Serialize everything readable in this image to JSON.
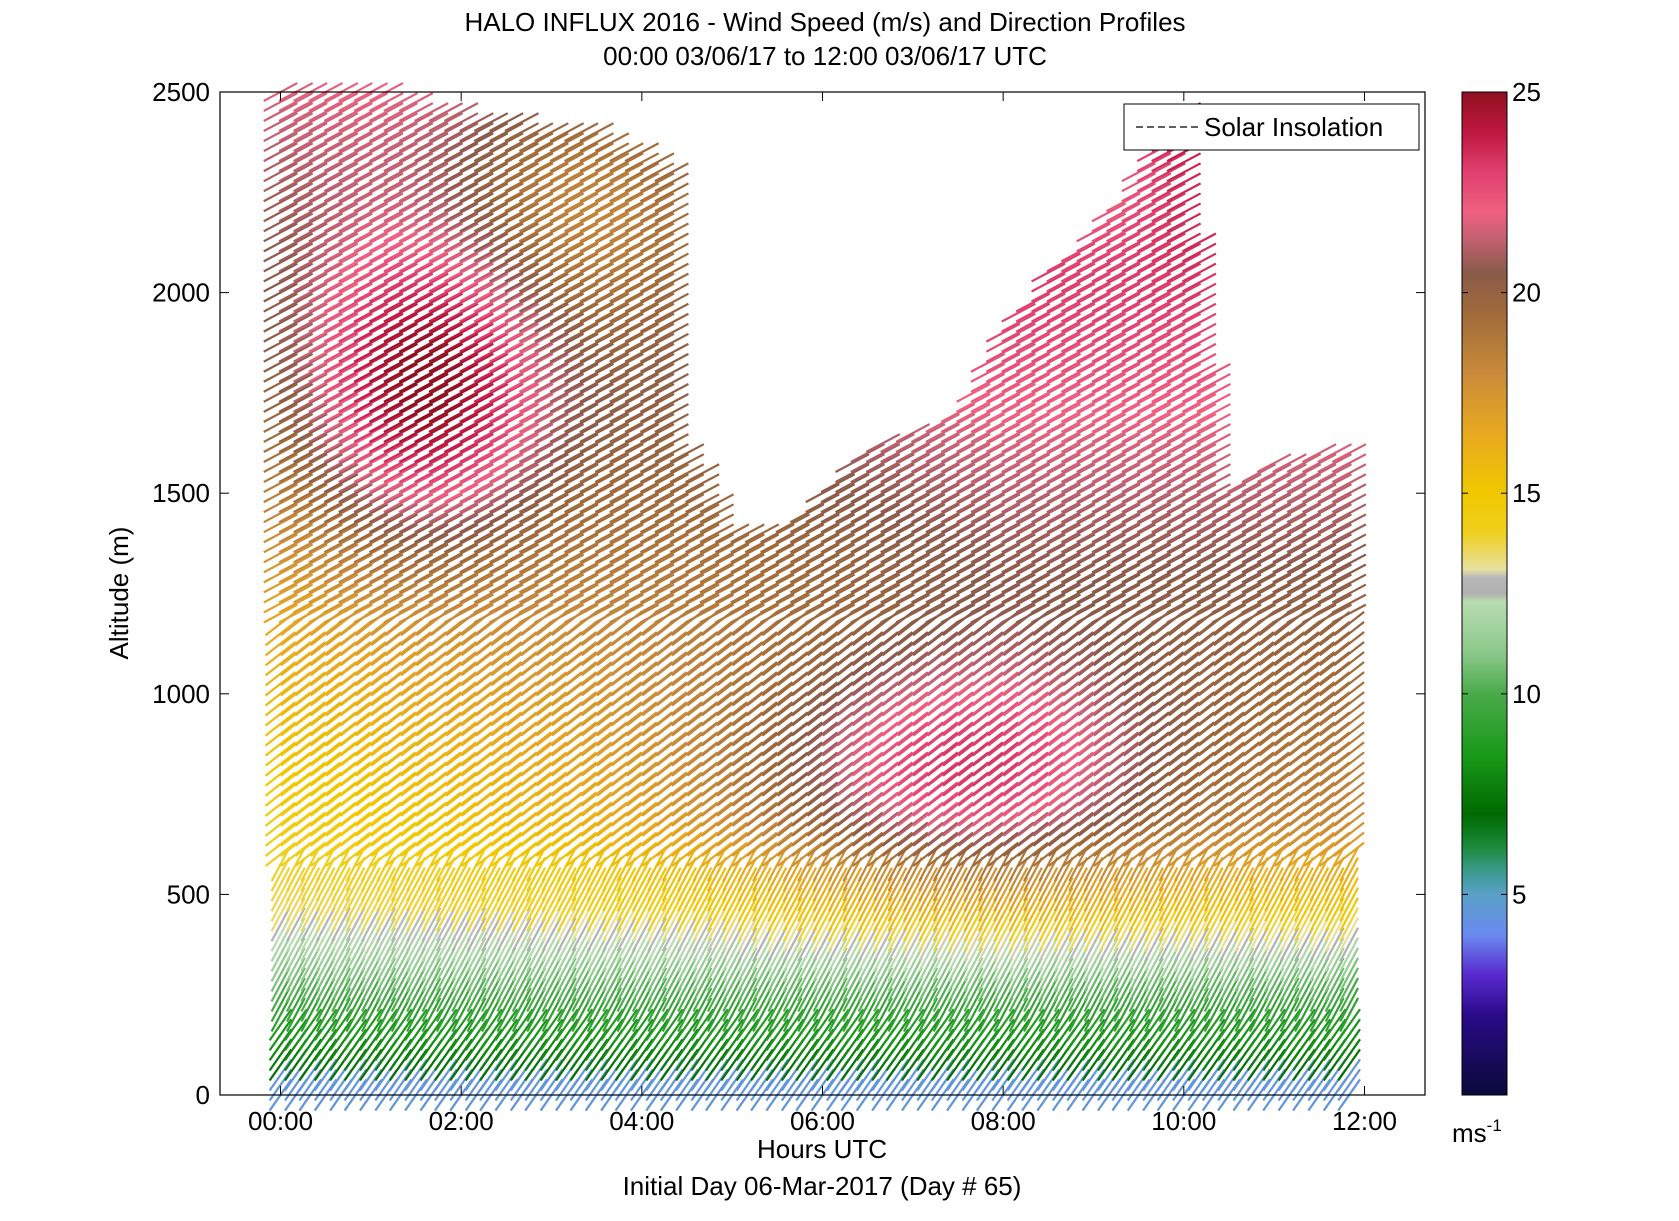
{
  "chart_data": {
    "type": "quiver",
    "title": "HALO INFLUX 2016 - Wind Speed (m/s) and Direction Profiles",
    "subtitle": "00:00 03/06/17 to 12:00 03/06/17  UTC",
    "xlabel": "Hours UTC",
    "xlabel2": "Initial Day 06-Mar-2017 (Day # 65)",
    "ylabel": "Altitude (m)",
    "xlim": [
      -0.67,
      12.67
    ],
    "ylim": [
      0,
      2500
    ],
    "x_ticks": [
      0,
      2,
      4,
      6,
      8,
      10,
      12
    ],
    "x_tick_labels": [
      "00:00",
      "02:00",
      "04:00",
      "06:00",
      "08:00",
      "10:00",
      "12:00"
    ],
    "y_ticks": [
      0,
      500,
      1000,
      1500,
      2000,
      2500
    ],
    "y_tick_labels": [
      "0",
      "500",
      "1000",
      "1500",
      "2000",
      "2500"
    ],
    "legend": {
      "entries": [
        "Solar Insolation"
      ],
      "placement": "top-right"
    },
    "colorbar": {
      "range": [
        0,
        25
      ],
      "ticks": [
        5,
        10,
        15,
        20,
        25
      ],
      "tick_labels": [
        "5",
        "10",
        "15",
        "20",
        "25"
      ],
      "unit_label": "ms",
      "unit_exponent": "-1",
      "colormap": [
        [
          0,
          "#0a0a3a"
        ],
        [
          2,
          "#2a0a8a"
        ],
        [
          3,
          "#5a2ad0"
        ],
        [
          4,
          "#6a8af0"
        ],
        [
          5,
          "#5aa0c8"
        ],
        [
          5.6,
          "#3a9a8a"
        ],
        [
          6.2,
          "#1a8a3a"
        ],
        [
          7,
          "#006a00"
        ],
        [
          8.5,
          "#1a9a1a"
        ],
        [
          10,
          "#4aaa4a"
        ],
        [
          11,
          "#8ac88a"
        ],
        [
          12.3,
          "#b8dcb0"
        ],
        [
          12.5,
          "#b0b0b0"
        ],
        [
          12.9,
          "#b8b8b8"
        ],
        [
          13.1,
          "#e8e0a0"
        ],
        [
          14,
          "#f0d020"
        ],
        [
          15,
          "#f0c800"
        ],
        [
          16.5,
          "#e8a820"
        ],
        [
          18,
          "#c88a3a"
        ],
        [
          19.5,
          "#a06a3a"
        ],
        [
          20.5,
          "#8a5a4a"
        ],
        [
          21.3,
          "#c06070"
        ],
        [
          22,
          "#f06080"
        ],
        [
          23,
          "#e04070"
        ],
        [
          24,
          "#c01840"
        ],
        [
          25,
          "#901020"
        ]
      ]
    },
    "wind_field": {
      "profile_times_h": [
        0,
        0.17,
        0.33,
        0.5,
        0.67,
        0.83,
        1.0,
        1.17,
        1.33,
        1.5,
        1.67,
        1.83,
        2.0,
        2.17,
        2.33,
        2.5,
        2.67,
        2.83,
        3.0,
        3.17,
        3.33,
        3.5,
        3.67,
        3.83,
        4.0,
        4.17,
        4.33,
        4.5,
        4.67,
        4.83,
        5.0,
        5.17,
        5.33,
        5.5,
        5.67,
        5.83,
        6.0,
        6.17,
        6.33,
        6.5,
        6.67,
        6.83,
        7.0,
        7.17,
        7.33,
        7.5,
        7.67,
        7.83,
        8.0,
        8.17,
        8.33,
        8.5,
        8.67,
        8.83,
        9.0,
        9.17,
        9.33,
        9.5,
        9.67,
        9.83,
        10.0,
        10.17,
        10.33,
        10.5,
        10.67,
        10.83,
        11.0,
        11.17,
        11.33,
        11.5,
        11.67,
        11.83
      ],
      "altitude_step_m": 25,
      "top_altitude_profile_m": [
        [
          0,
          2500
        ],
        [
          1.2,
          2500
        ],
        [
          2.0,
          2450
        ],
        [
          3.6,
          2400
        ],
        [
          4.4,
          2300
        ],
        [
          4.5,
          1620
        ],
        [
          5.0,
          1420
        ],
        [
          5.5,
          1400
        ],
        [
          6.0,
          1500
        ],
        [
          6.5,
          1620
        ],
        [
          7.0,
          1650
        ],
        [
          7.5,
          1700
        ],
        [
          8.0,
          1900
        ],
        [
          8.5,
          2050
        ],
        [
          9.0,
          2150
        ],
        [
          9.5,
          2300
        ],
        [
          10.0,
          2450
        ],
        [
          10.5,
          1500
        ],
        [
          11.0,
          1580
        ],
        [
          11.83,
          1620
        ]
      ]
    }
  }
}
